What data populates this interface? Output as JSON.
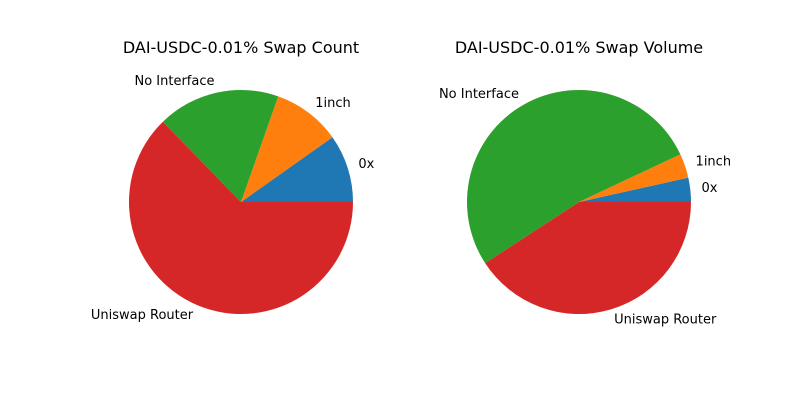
{
  "chart_data": [
    {
      "type": "pie",
      "title": "DAI-USDC-0.01% Swap Count",
      "labels": [
        "0x",
        "1inch",
        "No Interface",
        "Uniswap Router"
      ],
      "values": [
        9.8,
        9.8,
        17.7,
        62.7
      ],
      "colors": [
        "#1f77b4",
        "#ff7f0e",
        "#2ca02c",
        "#d62728"
      ],
      "start_angle": 0,
      "direction": "counterclockwise"
    },
    {
      "type": "pie",
      "title": "DAI-USDC-0.01% Swap Volume",
      "labels": [
        "0x",
        "1inch",
        "No Interface",
        "Uniswap Router"
      ],
      "values": [
        3.5,
        3.5,
        52.2,
        40.8
      ],
      "colors": [
        "#1f77b4",
        "#ff7f0e",
        "#2ca02c",
        "#d62728"
      ],
      "start_angle": 0,
      "direction": "counterclockwise"
    }
  ]
}
